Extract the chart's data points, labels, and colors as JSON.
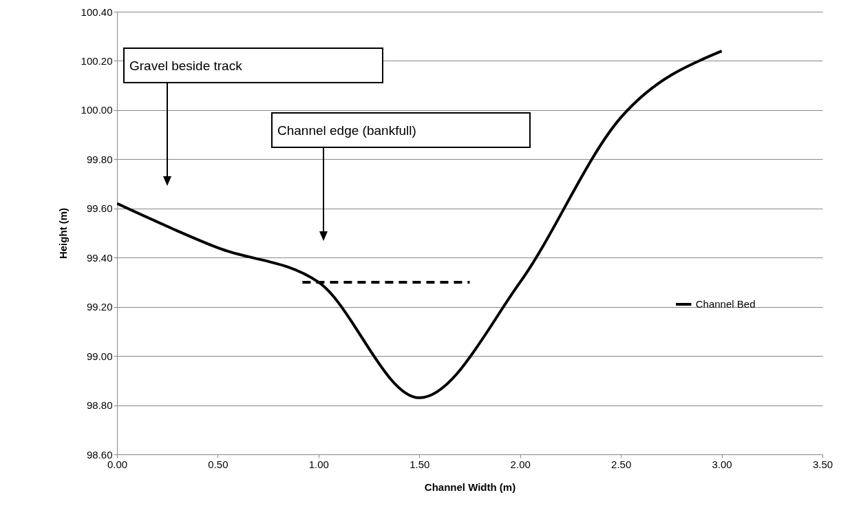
{
  "chart_data": {
    "type": "line",
    "xlabel": "Channel Width (m)",
    "ylabel": "Height (m)",
    "series": [
      {
        "name": "Channel Bed",
        "color": "#000000",
        "x": [
          0,
          0.5,
          1,
          1.5,
          2,
          2.5,
          3
        ],
        "values": [
          99.62,
          99.44,
          99.3,
          98.83,
          99.3,
          99.97,
          100.24
        ]
      },
      {
        "color": "#000000",
        "x": [
          0.92,
          1.75
        ],
        "values": [
          99.3,
          99.3
        ],
        "line_style": "dashed"
      }
    ],
    "annotations": [
      "Gravel beside track",
      "Channel edge (bankfull)"
    ],
    "xlim": [
      0,
      3.5
    ],
    "ylim": [
      98.6,
      100.4
    ],
    "xticks": [
      {
        "value": 0,
        "label": "0.00"
      },
      {
        "value": 0.5,
        "label": "0.50"
      },
      {
        "value": 1,
        "label": "1.00"
      },
      {
        "value": 1.5,
        "label": "1.50"
      },
      {
        "value": 2,
        "label": "2.00"
      },
      {
        "value": 2.5,
        "label": "2.50"
      },
      {
        "value": 3,
        "label": "3.00"
      },
      {
        "value": 3.5,
        "label": "3.50"
      }
    ],
    "yticks": [
      {
        "value": 98.6,
        "label": "98.60"
      },
      {
        "value": 98.8,
        "label": "98.80"
      },
      {
        "value": 99,
        "label": "99.00"
      },
      {
        "value": 99.2,
        "label": "99.20"
      },
      {
        "value": 99.4,
        "label": "99.40"
      },
      {
        "value": 99.6,
        "label": "99.60"
      },
      {
        "value": 99.8,
        "label": "99.80"
      },
      {
        "value": 100,
        "label": "100.00"
      },
      {
        "value": 100.2,
        "label": "100.20"
      },
      {
        "value": 100.4,
        "label": "100.40"
      }
    ],
    "grid": "y",
    "legend": "right",
    "line_style": "solid"
  }
}
